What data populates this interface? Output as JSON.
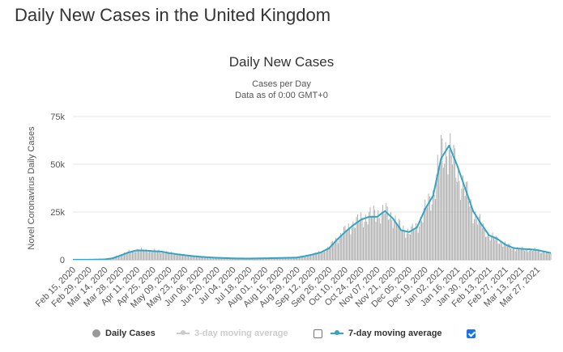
{
  "page": {
    "title": "Daily New Cases in the United Kingdom"
  },
  "colors": {
    "bars": "#a8a8a8",
    "moving_average_7": "#35a3c4",
    "moving_average_3": "#cccccc",
    "gridline": "#e6e6e6",
    "axis_text": "#555555",
    "checkbox_checked": "#1a73e8"
  },
  "legend": {
    "daily_cases": "Daily Cases",
    "ma3": "3-day moving average",
    "ma7": "7-day moving average",
    "ma3_checked": false,
    "ma7_checked": true
  },
  "chart_data": {
    "type": "bar",
    "title": "Daily New Cases",
    "subtitle": [
      "Cases per Day",
      "Data as of 0:00 GMT+0"
    ],
    "xlabel": "",
    "ylabel": "Novel Coronavirus Daily Cases",
    "ylim": [
      0,
      75000
    ],
    "yticks": [
      0,
      25000,
      50000,
      75000
    ],
    "ytick_labels": [
      "0",
      "25k",
      "50k",
      "75k"
    ],
    "grid": true,
    "legend_position": "bottom",
    "x_start_date": "2020-02-15",
    "x_end_date": "2021-04-08",
    "xtick_labels": [
      "Feb 15, 2020",
      "Feb 29, 2020",
      "Mar 14, 2020",
      "Mar 28, 2020",
      "Apr 11, 2020",
      "Apr 25, 2020",
      "May 09, 2020",
      "May 23, 2020",
      "Jun 06, 2020",
      "Jun 20, 2020",
      "Jul 04, 2020",
      "Jul 18, 2020",
      "Aug 01, 2020",
      "Aug 15, 2020",
      "Aug 29, 2020",
      "Sep 12, 2020",
      "Sep 26, 2020",
      "Oct 10, 2020",
      "Oct 24, 2020",
      "Nov 07, 2020",
      "Nov 21, 2020",
      "Dec 05, 2020",
      "Dec 19, 2020",
      "Jan 02, 2021",
      "Jan 16, 2021",
      "Jan 30, 2021",
      "Feb 13, 2021",
      "Feb 27, 2021",
      "Mar 13, 2021",
      "Mar 27, 2021"
    ],
    "series": [
      {
        "name": "Daily Cases",
        "kind": "bar",
        "points": [
          [
            "2020-02-15",
            0
          ],
          [
            "2020-03-01",
            50
          ],
          [
            "2020-03-14",
            300
          ],
          [
            "2020-03-21",
            1000
          ],
          [
            "2020-03-28",
            2800
          ],
          [
            "2020-04-04",
            4200
          ],
          [
            "2020-04-11",
            5200
          ],
          [
            "2020-04-18",
            5000
          ],
          [
            "2020-04-25",
            4600
          ],
          [
            "2020-05-02",
            4500
          ],
          [
            "2020-05-09",
            3600
          ],
          [
            "2020-05-16",
            3000
          ],
          [
            "2020-05-23",
            2500
          ],
          [
            "2020-05-30",
            2000
          ],
          [
            "2020-06-06",
            1600
          ],
          [
            "2020-06-13",
            1300
          ],
          [
            "2020-06-20",
            1100
          ],
          [
            "2020-06-27",
            950
          ],
          [
            "2020-07-04",
            750
          ],
          [
            "2020-07-18",
            650
          ],
          [
            "2020-08-01",
            800
          ],
          [
            "2020-08-15",
            1000
          ],
          [
            "2020-08-29",
            1200
          ],
          [
            "2020-09-05",
            2000
          ],
          [
            "2020-09-12",
            3000
          ],
          [
            "2020-09-19",
            4000
          ],
          [
            "2020-09-26",
            6500
          ],
          [
            "2020-10-03",
            11000
          ],
          [
            "2020-10-10",
            15000
          ],
          [
            "2020-10-17",
            18500
          ],
          [
            "2020-10-24",
            21000
          ],
          [
            "2020-10-31",
            23000
          ],
          [
            "2020-11-07",
            24000
          ],
          [
            "2020-11-14",
            25000
          ],
          [
            "2020-11-21",
            22000
          ],
          [
            "2020-11-28",
            16500
          ],
          [
            "2020-12-05",
            14500
          ],
          [
            "2020-12-12",
            17000
          ],
          [
            "2020-12-19",
            26000
          ],
          [
            "2020-12-26",
            34000
          ],
          [
            "2021-01-02",
            55000
          ],
          [
            "2021-01-09",
            59000
          ],
          [
            "2021-01-16",
            45000
          ],
          [
            "2021-01-23",
            37000
          ],
          [
            "2021-01-30",
            25000
          ],
          [
            "2021-02-06",
            18500
          ],
          [
            "2021-02-13",
            12500
          ],
          [
            "2021-02-20",
            10500
          ],
          [
            "2021-02-27",
            8000
          ],
          [
            "2021-03-06",
            6000
          ],
          [
            "2021-03-13",
            5500
          ],
          [
            "2021-03-20",
            5400
          ],
          [
            "2021-03-27",
            5000
          ],
          [
            "2021-04-03",
            4000
          ],
          [
            "2021-04-08",
            3000
          ]
        ]
      },
      {
        "name": "7-day moving average",
        "kind": "line",
        "points": [
          [
            "2020-02-15",
            0
          ],
          [
            "2020-03-01",
            30
          ],
          [
            "2020-03-14",
            200
          ],
          [
            "2020-03-21",
            800
          ],
          [
            "2020-03-28",
            2300
          ],
          [
            "2020-04-04",
            3900
          ],
          [
            "2020-04-11",
            4900
          ],
          [
            "2020-04-18",
            4800
          ],
          [
            "2020-04-25",
            4500
          ],
          [
            "2020-05-02",
            4300
          ],
          [
            "2020-05-09",
            3500
          ],
          [
            "2020-05-16",
            2900
          ],
          [
            "2020-05-23",
            2400
          ],
          [
            "2020-05-30",
            1900
          ],
          [
            "2020-06-06",
            1550
          ],
          [
            "2020-06-13",
            1250
          ],
          [
            "2020-06-20",
            1050
          ],
          [
            "2020-06-27",
            900
          ],
          [
            "2020-07-04",
            720
          ],
          [
            "2020-07-18",
            640
          ],
          [
            "2020-08-01",
            780
          ],
          [
            "2020-08-15",
            960
          ],
          [
            "2020-08-29",
            1150
          ],
          [
            "2020-09-05",
            1900
          ],
          [
            "2020-09-12",
            2800
          ],
          [
            "2020-09-19",
            3900
          ],
          [
            "2020-09-26",
            6000
          ],
          [
            "2020-10-03",
            10500
          ],
          [
            "2020-10-10",
            14500
          ],
          [
            "2020-10-17",
            18000
          ],
          [
            "2020-10-24",
            21000
          ],
          [
            "2020-10-31",
            22500
          ],
          [
            "2020-11-07",
            22500
          ],
          [
            "2020-11-14",
            25500
          ],
          [
            "2020-11-21",
            21500
          ],
          [
            "2020-11-28",
            15500
          ],
          [
            "2020-12-05",
            14500
          ],
          [
            "2020-12-12",
            17000
          ],
          [
            "2020-12-19",
            26500
          ],
          [
            "2020-12-26",
            33500
          ],
          [
            "2021-01-02",
            53000
          ],
          [
            "2021-01-09",
            59800
          ],
          [
            "2021-01-16",
            49500
          ],
          [
            "2021-01-23",
            37500
          ],
          [
            "2021-01-30",
            25500
          ],
          [
            "2021-02-06",
            18800
          ],
          [
            "2021-02-13",
            12800
          ],
          [
            "2021-02-20",
            11000
          ],
          [
            "2021-02-27",
            8000
          ],
          [
            "2021-03-06",
            6200
          ],
          [
            "2021-03-13",
            5700
          ],
          [
            "2021-03-20",
            5500
          ],
          [
            "2021-03-27",
            5100
          ],
          [
            "2021-04-03",
            4200
          ],
          [
            "2021-04-08",
            3500
          ]
        ]
      }
    ]
  }
}
